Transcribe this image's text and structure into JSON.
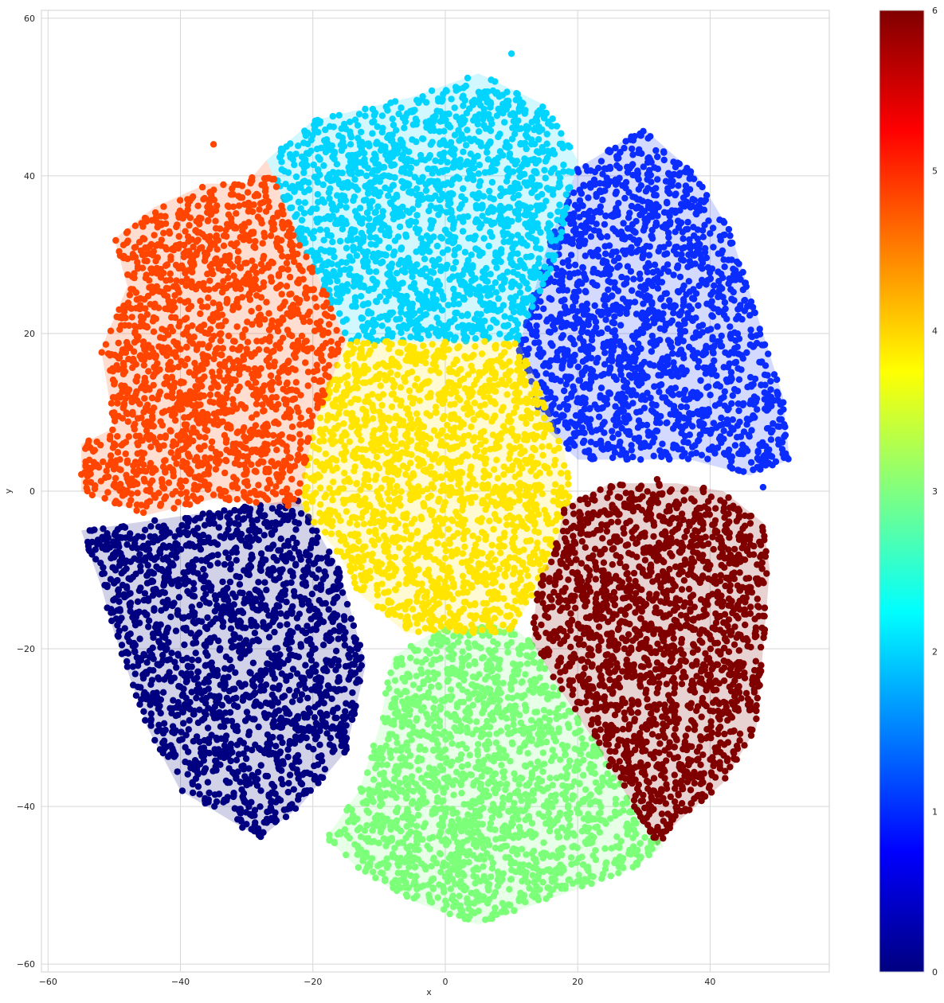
{
  "chart_data": {
    "type": "scatter",
    "title": "",
    "xlabel": "x",
    "ylabel": "y",
    "xlim": [
      -61,
      58
    ],
    "ylim": [
      -61,
      61
    ],
    "x_ticks": [
      -60,
      -40,
      -20,
      0,
      20,
      40
    ],
    "y_ticks": [
      60,
      40,
      20,
      0,
      -20,
      -40,
      -60
    ],
    "grid": true,
    "colormap": "jet",
    "colorbar": {
      "range": [
        0,
        6
      ],
      "ticks": [
        0,
        1,
        2,
        3,
        4,
        5,
        6
      ]
    },
    "colorbar_stops": [
      "#000080",
      "#0000ff",
      "#0080ff",
      "#00ffff",
      "#80ff80",
      "#ffff00",
      "#ff8000",
      "#ff0000",
      "#800000"
    ],
    "clusters": [
      {
        "label": 0,
        "color": "#000080",
        "center": [
          -32,
          -22
        ],
        "polygon": [
          [
            -55,
            -5
          ],
          [
            -22,
            -1
          ],
          [
            -16,
            -10
          ],
          [
            -12,
            -22
          ],
          [
            -15,
            -33
          ],
          [
            -22,
            -40
          ],
          [
            -28,
            -44
          ],
          [
            -40,
            -38
          ],
          [
            -45,
            -30
          ],
          [
            -50,
            -18
          ],
          [
            -52,
            -12
          ]
        ]
      },
      {
        "label": 1,
        "color": "#0a2cff",
        "center": [
          32,
          18
        ],
        "polygon": [
          [
            20,
            41
          ],
          [
            30,
            46
          ],
          [
            38,
            40
          ],
          [
            43,
            33
          ],
          [
            48,
            20
          ],
          [
            51,
            12
          ],
          [
            52,
            4
          ],
          [
            46,
            2
          ],
          [
            37,
            4
          ],
          [
            25,
            4
          ],
          [
            20,
            4
          ],
          [
            15,
            8
          ],
          [
            11,
            18
          ],
          [
            15,
            30
          ]
        ]
      },
      {
        "label": 2,
        "color": "#00d4ff",
        "center": [
          -1,
          35
        ],
        "polygon": [
          [
            -27,
            42
          ],
          [
            -20,
            47
          ],
          [
            -5,
            50
          ],
          [
            5,
            53
          ],
          [
            15,
            49
          ],
          [
            20,
            42
          ],
          [
            17,
            30
          ],
          [
            11,
            19
          ],
          [
            0,
            19
          ],
          [
            -15,
            19
          ],
          [
            -18,
            25
          ],
          [
            -22,
            32
          ]
        ]
      },
      {
        "label": 3,
        "color": "#7cff79",
        "center": [
          5,
          -36
        ],
        "polygon": [
          [
            -8,
            -21
          ],
          [
            0,
            -17
          ],
          [
            10,
            -17
          ],
          [
            14,
            -20
          ],
          [
            18,
            -26
          ],
          [
            22,
            -31
          ],
          [
            27,
            -38
          ],
          [
            33,
            -45
          ],
          [
            28,
            -48
          ],
          [
            15,
            -52
          ],
          [
            5,
            -55
          ],
          [
            -5,
            -52
          ],
          [
            -13,
            -48
          ],
          [
            -18,
            -44
          ],
          [
            -13,
            -38
          ],
          [
            -10,
            -30
          ]
        ]
      },
      {
        "label": 4,
        "color": "#ffe500",
        "center": [
          -2,
          2
        ],
        "polygon": [
          [
            -15,
            19
          ],
          [
            11,
            19
          ],
          [
            15,
            12
          ],
          [
            18,
            5
          ],
          [
            19,
            0
          ],
          [
            17,
            -6
          ],
          [
            14,
            -12
          ],
          [
            10,
            -18
          ],
          [
            2,
            -18
          ],
          [
            -6,
            -18
          ],
          [
            -13,
            -13
          ],
          [
            -16,
            -8
          ],
          [
            -22,
            -2
          ],
          [
            -20,
            8
          ]
        ]
      },
      {
        "label": 5,
        "color": "#ff4500",
        "center": [
          -36,
          15
        ],
        "polygon": [
          [
            -55,
            0
          ],
          [
            -55,
            6
          ],
          [
            -50,
            8
          ],
          [
            -52,
            18
          ],
          [
            -48,
            26
          ],
          [
            -50,
            32
          ],
          [
            -44,
            36
          ],
          [
            -36,
            39
          ],
          [
            -30,
            39
          ],
          [
            -27,
            42
          ],
          [
            -22,
            32
          ],
          [
            -18,
            25
          ],
          [
            -15,
            19
          ],
          [
            -20,
            8
          ],
          [
            -22,
            -2
          ],
          [
            -35,
            -1
          ],
          [
            -45,
            -3
          ]
        ]
      },
      {
        "label": 6,
        "color": "#800000",
        "center": [
          34,
          -20
        ],
        "polygon": [
          [
            18,
            -2
          ],
          [
            25,
            1
          ],
          [
            35,
            1
          ],
          [
            42,
            0
          ],
          [
            48,
            -4
          ],
          [
            49,
            -10
          ],
          [
            48,
            -20
          ],
          [
            47,
            -30
          ],
          [
            42,
            -37
          ],
          [
            35,
            -42
          ],
          [
            32,
            -45
          ],
          [
            27,
            -38
          ],
          [
            22,
            -31
          ],
          [
            18,
            -26
          ],
          [
            13,
            -19
          ],
          [
            14,
            -12
          ],
          [
            17,
            -6
          ]
        ]
      }
    ],
    "outliers": [
      {
        "label": 5,
        "x": -35,
        "y": 44
      },
      {
        "label": 2,
        "x": 10,
        "y": 55.5
      },
      {
        "label": 1,
        "x": 48,
        "y": 0.5
      },
      {
        "label": 6,
        "x": 32,
        "y": 1.5
      }
    ]
  }
}
